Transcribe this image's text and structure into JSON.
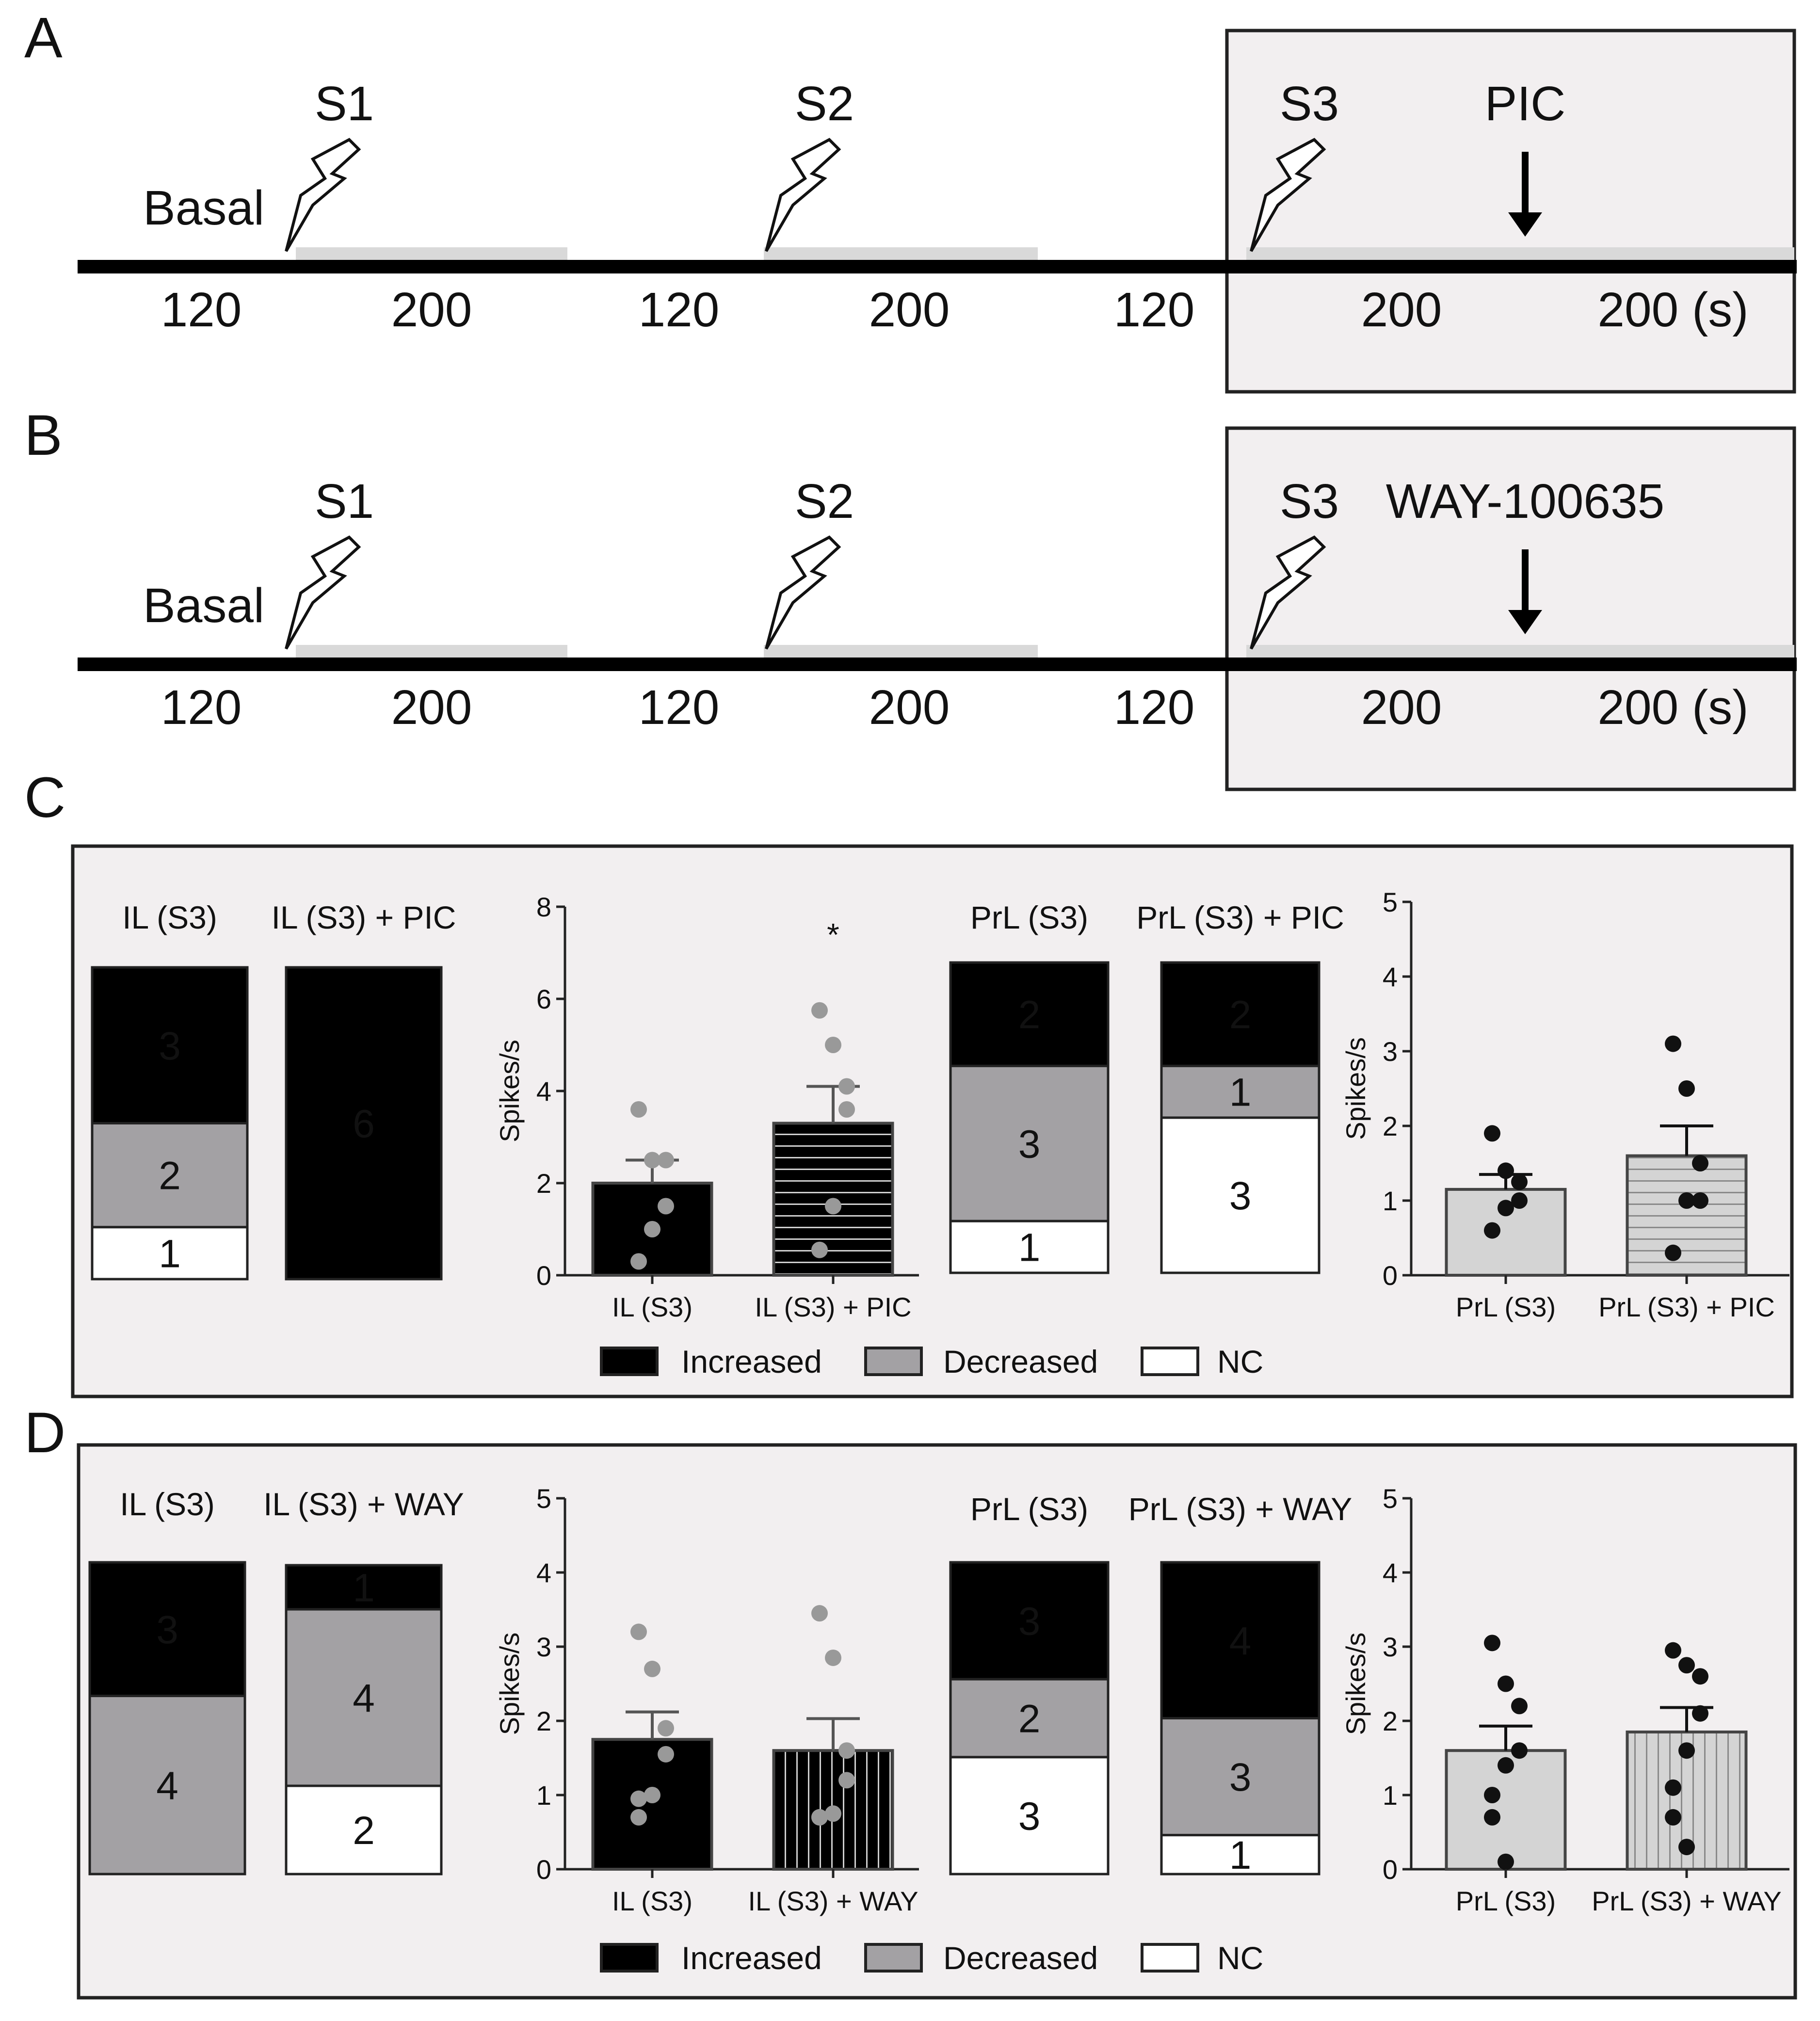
{
  "panels": {
    "A": {
      "letter": "A",
      "basal": "Basal",
      "stims": [
        "S1",
        "S2",
        "S3"
      ],
      "drug": "PIC",
      "durations": [
        "120",
        "200",
        "120",
        "200",
        "120",
        "200",
        "200 (s)"
      ]
    },
    "B": {
      "letter": "B",
      "basal": "Basal",
      "stims": [
        "S1",
        "S2",
        "S3"
      ],
      "drug": "WAY-100635",
      "durations": [
        "120",
        "200",
        "120",
        "200",
        "120",
        "200",
        "200 (s)"
      ]
    },
    "C": {
      "letter": "C",
      "legend": [
        "Increased",
        "Decreased",
        "NC"
      ]
    },
    "D": {
      "letter": "D",
      "legend": [
        "Increased",
        "Decreased",
        "NC"
      ]
    }
  },
  "colors": {
    "increased": "#000000",
    "decreased": "#a3a1a4",
    "nc": "#ffffff",
    "panel_bg": "#f2eff0",
    "stim_bar": "#d9d9d9",
    "dot_gray": "#999999",
    "bar_light": "#d4d4d4"
  },
  "chart_data": [
    {
      "id": "C-IL-stacked",
      "type": "bar",
      "stacked": true,
      "categories": [
        "IL (S3)",
        "IL (S3) + PIC"
      ],
      "series": [
        {
          "name": "Increased",
          "values": [
            3,
            6
          ]
        },
        {
          "name": "Decreased",
          "values": [
            2,
            0
          ]
        },
        {
          "name": "NC",
          "values": [
            1,
            0
          ]
        }
      ]
    },
    {
      "id": "C-IL-rate",
      "type": "bar",
      "categories": [
        "IL (S3)",
        "IL (S3) + PIC"
      ],
      "values": [
        2.0,
        3.3
      ],
      "sem": [
        0.5,
        0.8
      ],
      "points": [
        [
          3.6,
          2.5,
          2.5,
          1.5,
          1.0,
          0.3
        ],
        [
          5.75,
          5.0,
          4.1,
          3.6,
          1.5,
          0.55
        ]
      ],
      "annotation": "*",
      "ylabel": "Spikes/s",
      "ylim": [
        0,
        8
      ],
      "yticks": [
        0,
        2,
        4,
        6,
        8
      ]
    },
    {
      "id": "C-PrL-stacked",
      "type": "bar",
      "stacked": true,
      "categories": [
        "PrL (S3)",
        "PrL (S3) + PIC"
      ],
      "series": [
        {
          "name": "Increased",
          "values": [
            2,
            2
          ]
        },
        {
          "name": "Decreased",
          "values": [
            3,
            1
          ]
        },
        {
          "name": "NC",
          "values": [
            1,
            3
          ]
        }
      ]
    },
    {
      "id": "C-PrL-rate",
      "type": "bar",
      "categories": [
        "PrL (S3)",
        "PrL (S3) + PIC"
      ],
      "values": [
        1.15,
        1.6
      ],
      "sem": [
        0.2,
        0.4
      ],
      "points": [
        [
          1.9,
          1.4,
          1.25,
          1.0,
          0.9,
          0.6
        ],
        [
          3.1,
          2.5,
          1.5,
          1.0,
          1.0,
          0.3
        ]
      ],
      "ylabel": "Spikes/s",
      "ylim": [
        0,
        5
      ],
      "yticks": [
        0,
        1,
        2,
        3,
        4,
        5
      ]
    },
    {
      "id": "D-IL-stacked",
      "type": "bar",
      "stacked": true,
      "categories": [
        "IL (S3)",
        "IL (S3) + WAY"
      ],
      "series": [
        {
          "name": "Increased",
          "values": [
            3,
            1
          ]
        },
        {
          "name": "Decreased",
          "values": [
            4,
            4
          ]
        },
        {
          "name": "NC",
          "values": [
            0,
            2
          ]
        }
      ]
    },
    {
      "id": "D-IL-rate",
      "type": "bar",
      "categories": [
        "IL (S3)",
        "IL (S3) + WAY"
      ],
      "values": [
        1.75,
        1.6
      ],
      "sem": [
        0.37,
        0.43
      ],
      "points": [
        [
          3.2,
          2.7,
          1.9,
          1.55,
          1.0,
          0.95,
          0.7
        ],
        [
          3.45,
          2.85,
          1.6,
          1.2,
          0.75,
          0.7,
          0.7
        ]
      ],
      "ylabel": "Spikes/s",
      "ylim": [
        0,
        5
      ],
      "yticks": [
        0,
        1,
        2,
        3,
        4,
        5
      ]
    },
    {
      "id": "D-PrL-stacked",
      "type": "bar",
      "stacked": true,
      "categories": [
        "PrL (S3)",
        "PrL (S3) + WAY"
      ],
      "series": [
        {
          "name": "Increased",
          "values": [
            3,
            4
          ]
        },
        {
          "name": "Decreased",
          "values": [
            2,
            3
          ]
        },
        {
          "name": "NC",
          "values": [
            3,
            1
          ]
        }
      ]
    },
    {
      "id": "D-PrL-rate",
      "type": "bar",
      "categories": [
        "PrL (S3)",
        "PrL (S3) + WAY"
      ],
      "values": [
        1.6,
        1.85
      ],
      "sem": [
        0.33,
        0.33
      ],
      "points": [
        [
          3.05,
          2.5,
          2.2,
          1.6,
          1.4,
          1.0,
          0.7,
          0.1
        ],
        [
          2.95,
          2.75,
          2.6,
          2.1,
          1.6,
          1.1,
          0.7,
          0.3
        ]
      ],
      "ylabel": "Spikes/s",
      "ylim": [
        0,
        5
      ],
      "yticks": [
        0,
        1,
        2,
        3,
        4,
        5
      ]
    }
  ]
}
